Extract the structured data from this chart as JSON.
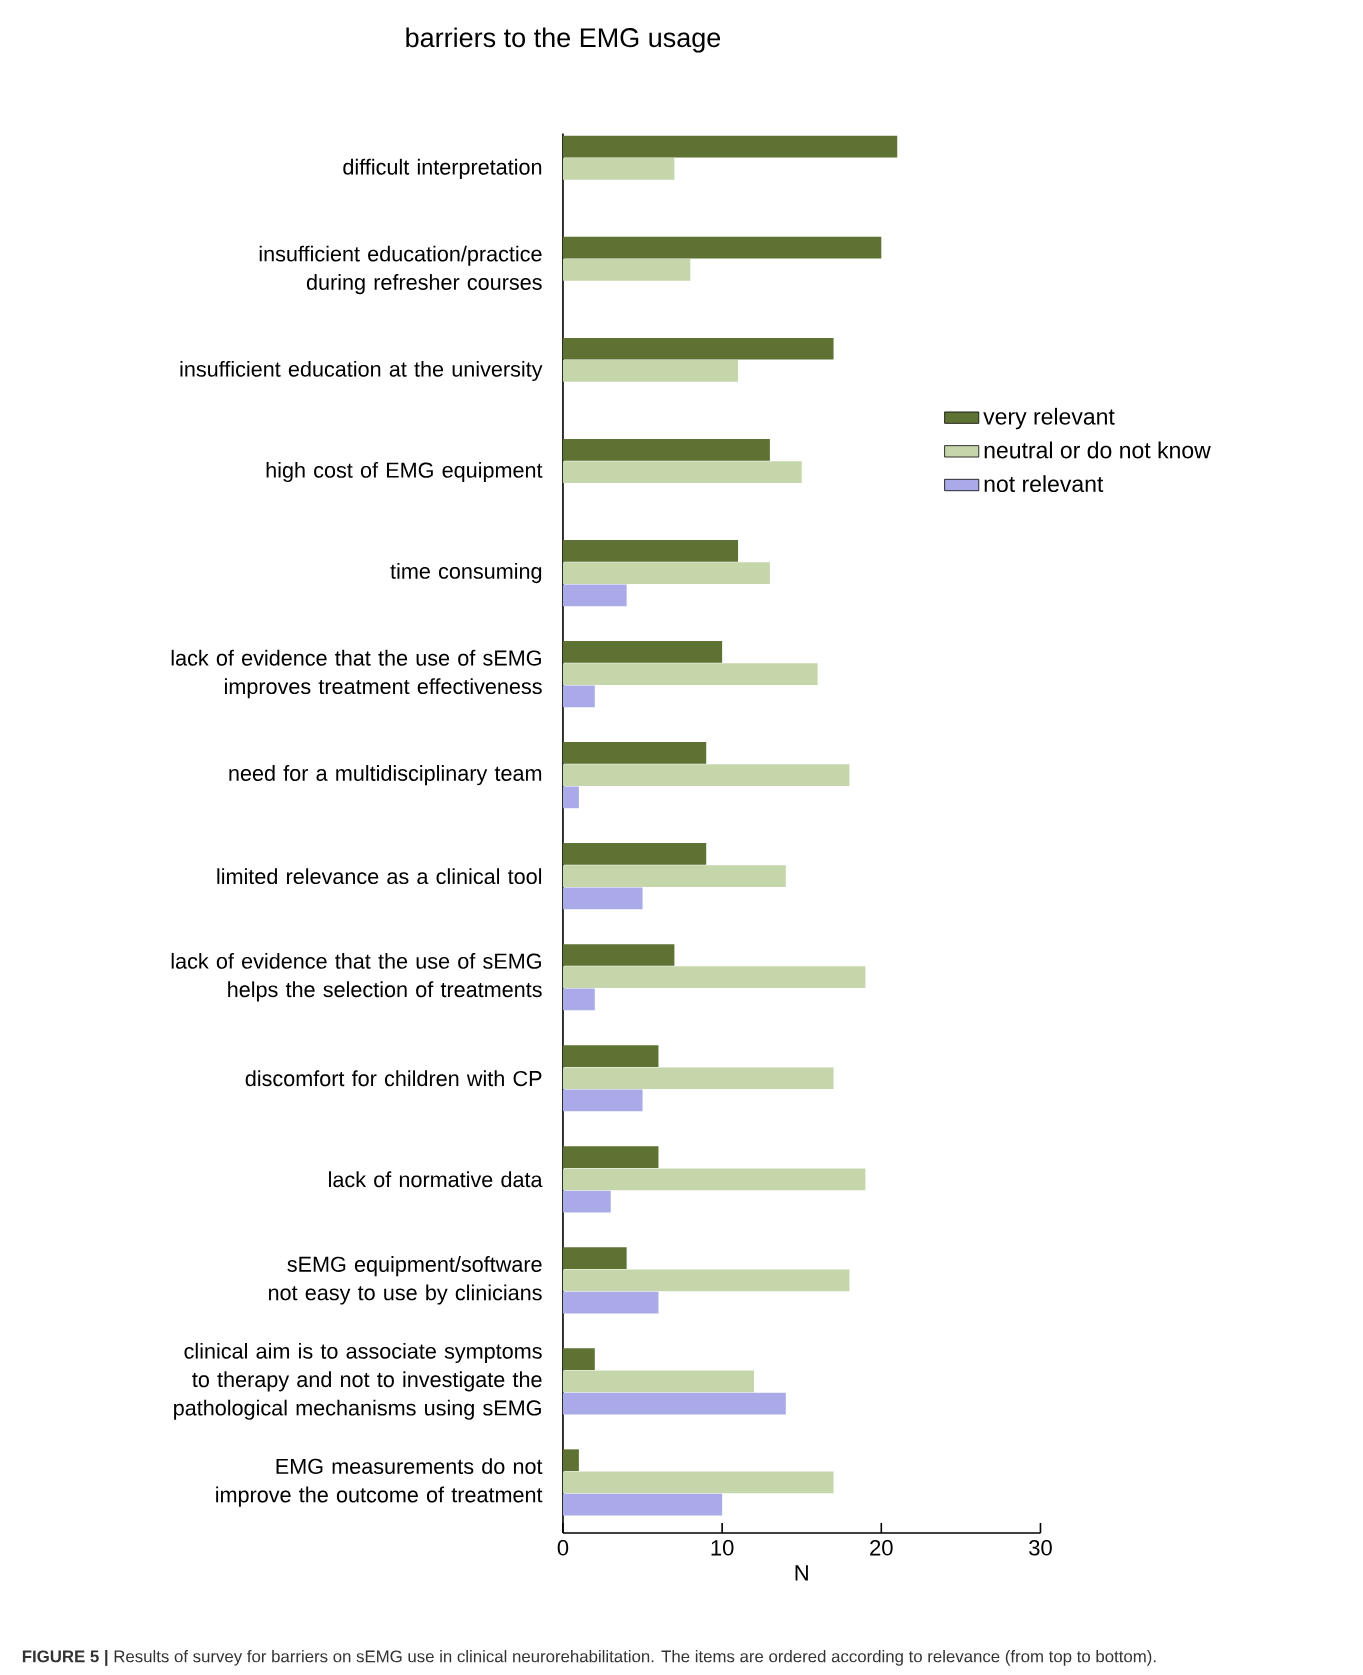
{
  "chart_data": {
    "type": "bar",
    "orientation": "horizontal",
    "title": "barriers to the EMG usage",
    "xlabel": "N",
    "categories": [
      "difficult interpretation",
      "insufficient education/practice during refresher courses",
      "insufficient education at the university",
      "high cost of EMG equipment",
      "time consuming",
      "lack of evidence that the use of sEMG improves treatment effectiveness",
      "need for a multidisciplinary team",
      "limited relevance as a clinical tool",
      "lack of evidence that the use of sEMG helps the selection of treatments",
      "discomfort for children with CP",
      "lack of normative data",
      "sEMG equipment/software not easy to use by clinicians",
      "clinical aim is to associate symptoms to therapy and not to investigate the pathological mechanisms using sEMG",
      "EMG measurements do not improve the outcome of treatment"
    ],
    "series": [
      {
        "name": "very relevant",
        "color": "#5e7233",
        "values": [
          21,
          20,
          17,
          13,
          11,
          10,
          9,
          9,
          7,
          6,
          6,
          4,
          2,
          1
        ]
      },
      {
        "name": "neutral or do not know",
        "color": "#c5d6ab",
        "values": [
          7,
          8,
          11,
          15,
          13,
          16,
          18,
          14,
          19,
          17,
          19,
          18,
          12,
          17
        ]
      },
      {
        "name": "not relevant",
        "color": "#aaaae8",
        "values": [
          null,
          null,
          null,
          null,
          4,
          2,
          1,
          5,
          2,
          5,
          3,
          6,
          14,
          10
        ]
      }
    ],
    "xlim": [
      0,
      30
    ],
    "xticks": [
      0,
      10,
      20,
      30
    ],
    "legend": "right",
    "annotations": [
      "**FIGURE 5 |** Results of survey for barriers on sEMG use in clinical neurorehabilitation. The items are ordered according to relevance (from top to bottom)."
    ]
  }
}
